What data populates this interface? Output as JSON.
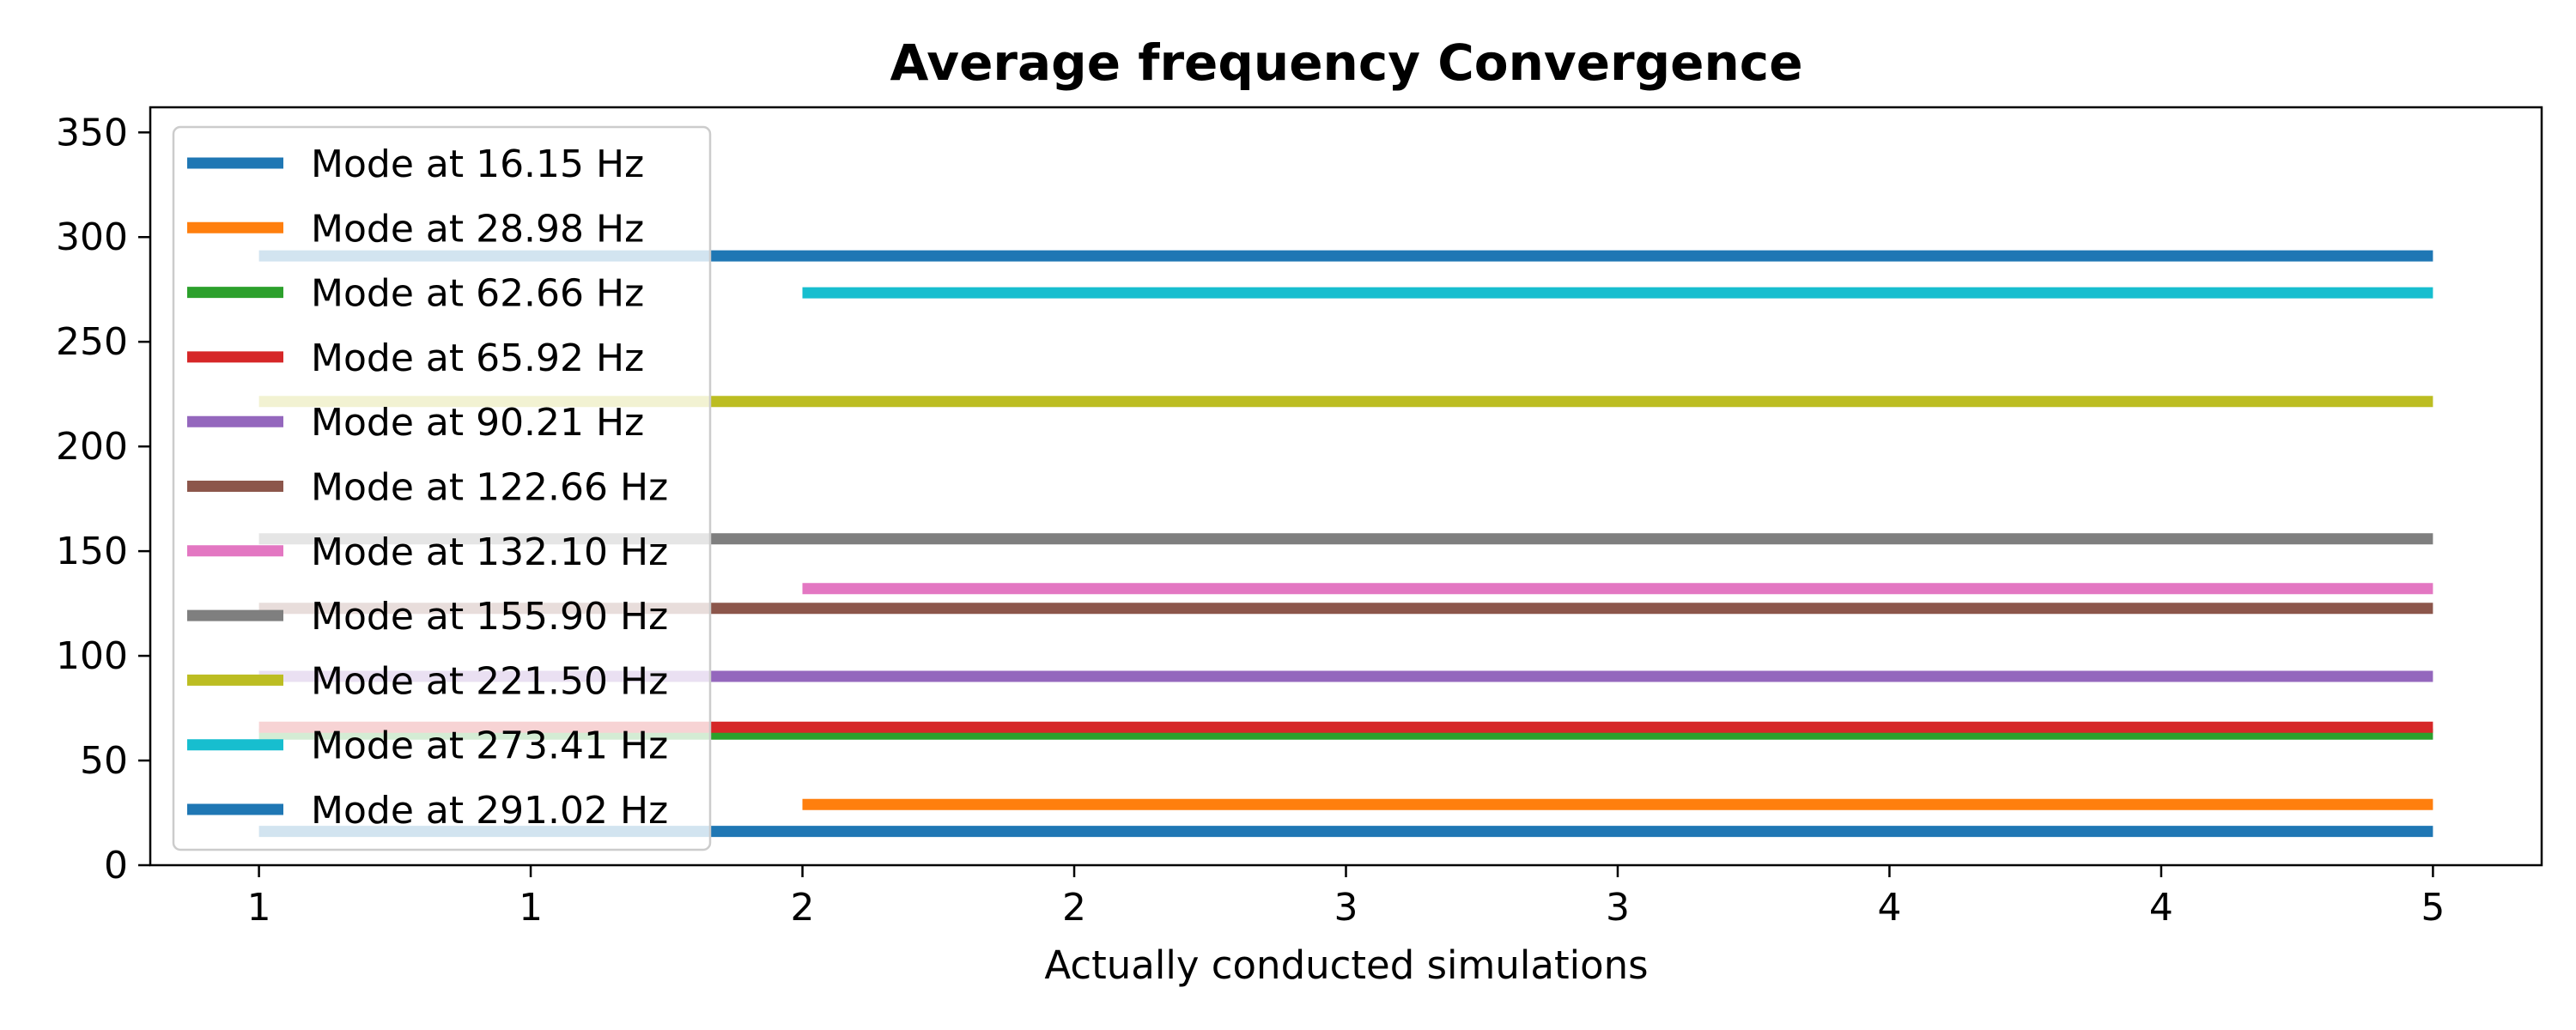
{
  "chart_data": {
    "type": "line",
    "title": "Average frequency Convergence",
    "xlabel": "Actually conducted simulations",
    "ylabel": "",
    "x_ticks": [
      "1",
      "1",
      "2",
      "2",
      "3",
      "3",
      "4",
      "4",
      "5"
    ],
    "x_tick_positions": [
      1,
      1.5,
      2,
      2.5,
      3,
      3.5,
      4,
      4.5,
      5
    ],
    "xlim": [
      0.8,
      5.2
    ],
    "ylim": [
      0,
      362
    ],
    "y_ticks": [
      0,
      50,
      100,
      150,
      200,
      250,
      300,
      350
    ],
    "legend_position": "upper-left",
    "grid": false,
    "series": [
      {
        "name": "Mode at 16.15 Hz",
        "color": "#1f77b4",
        "x": [
          1,
          2,
          3,
          4,
          5
        ],
        "y": [
          16.15,
          16.15,
          16.15,
          16.15,
          16.15
        ]
      },
      {
        "name": "Mode at 28.98 Hz",
        "color": "#ff7f0e",
        "x": [
          2,
          3,
          4,
          5
        ],
        "y": [
          28.98,
          28.98,
          28.98,
          28.98
        ]
      },
      {
        "name": "Mode at 62.66 Hz",
        "color": "#2ca02c",
        "x": [
          1,
          2,
          3,
          4,
          5
        ],
        "y": [
          62.66,
          62.66,
          62.66,
          62.66,
          62.66
        ]
      },
      {
        "name": "Mode at 65.92 Hz",
        "color": "#d62728",
        "x": [
          1,
          2,
          3,
          4,
          5
        ],
        "y": [
          65.92,
          65.92,
          65.92,
          65.92,
          65.92
        ]
      },
      {
        "name": "Mode at 90.21 Hz",
        "color": "#9467bd",
        "x": [
          1,
          2,
          3,
          4,
          5
        ],
        "y": [
          90.21,
          90.21,
          90.21,
          90.21,
          90.21
        ]
      },
      {
        "name": "Mode at 122.66 Hz",
        "color": "#8c564b",
        "x": [
          1,
          2,
          3,
          4,
          5
        ],
        "y": [
          122.66,
          122.66,
          122.66,
          122.66,
          122.66
        ]
      },
      {
        "name": "Mode at 132.10 Hz",
        "color": "#e377c2",
        "x": [
          2,
          3,
          4,
          5
        ],
        "y": [
          132.1,
          132.1,
          132.1,
          132.1
        ]
      },
      {
        "name": "Mode at 155.90 Hz",
        "color": "#7f7f7f",
        "x": [
          1,
          2,
          3,
          4,
          5
        ],
        "y": [
          155.9,
          155.9,
          155.9,
          155.9,
          155.9
        ]
      },
      {
        "name": "Mode at 221.50 Hz",
        "color": "#bcbd22",
        "x": [
          1,
          2,
          3,
          4,
          5
        ],
        "y": [
          221.5,
          221.5,
          221.5,
          221.5,
          221.5
        ]
      },
      {
        "name": "Mode at 273.41 Hz",
        "color": "#17becf",
        "x": [
          2,
          3,
          4,
          5
        ],
        "y": [
          273.41,
          273.41,
          273.41,
          273.41
        ]
      },
      {
        "name": "Mode at 291.02 Hz",
        "color": "#1f77b4",
        "x": [
          1,
          2,
          3,
          4,
          5
        ],
        "y": [
          291.02,
          291.02,
          291.02,
          291.02,
          291.02
        ]
      }
    ]
  }
}
